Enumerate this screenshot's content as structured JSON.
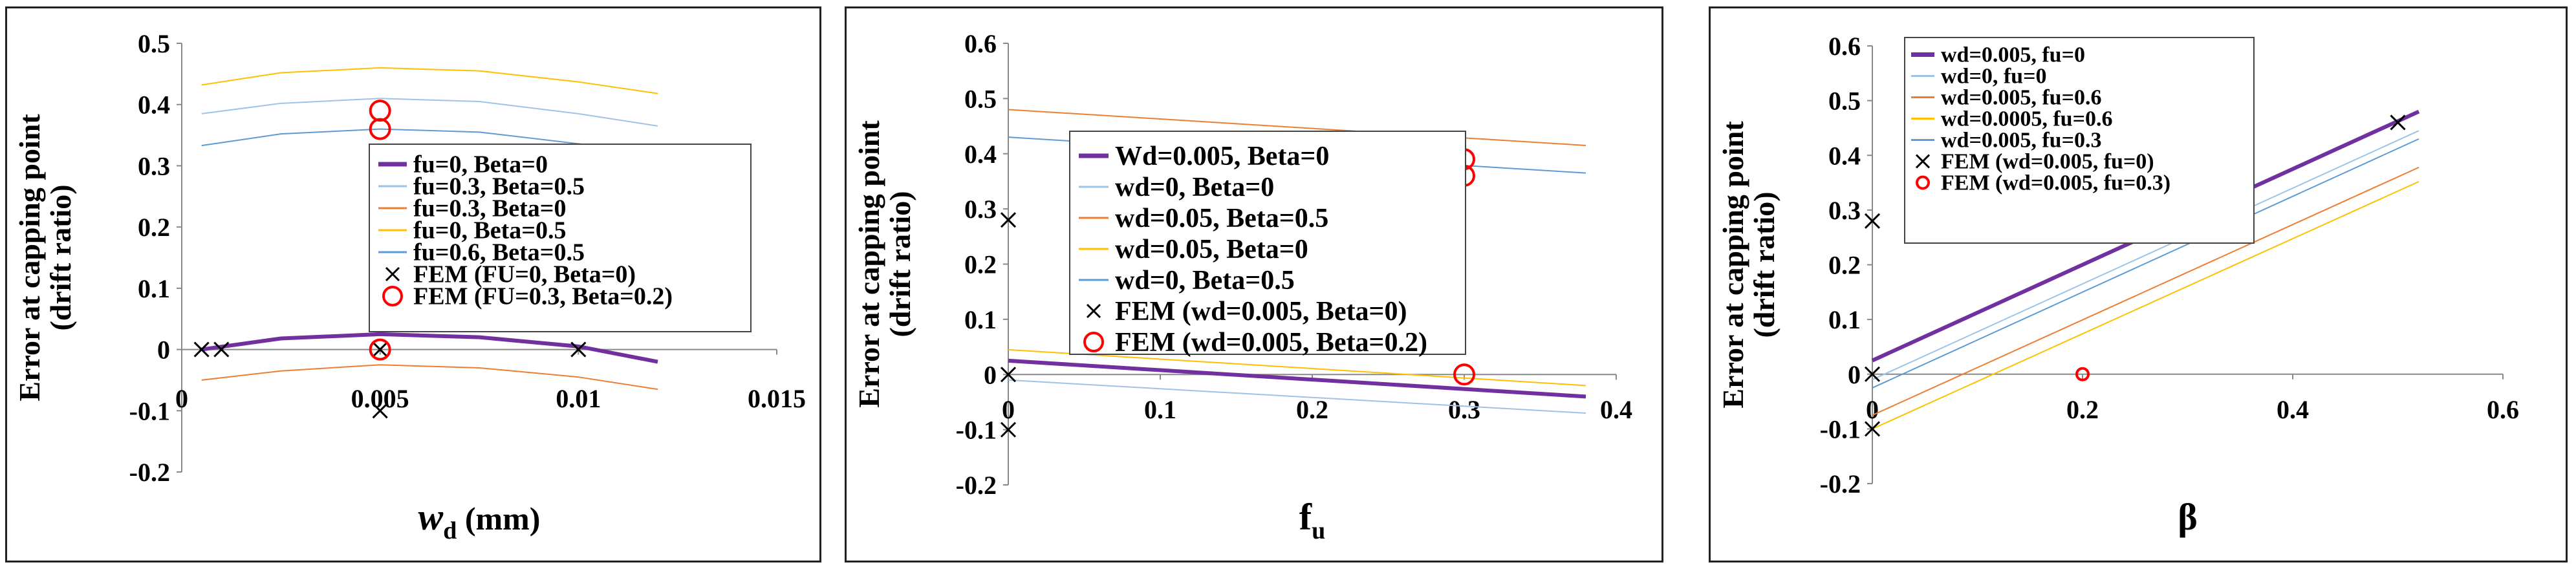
{
  "chart_data": [
    {
      "type": "line",
      "xlabel": "w_d (mm)",
      "xlabel_main": "w",
      "xlabel_sub": "d",
      "xlabel_unit": " (mm)",
      "ylabel": [
        "Error at capping point",
        "(drift ratio)"
      ],
      "xlim": [
        0,
        0.015
      ],
      "ylim": [
        -0.2,
        0.5
      ],
      "xticks": [
        0,
        0.005,
        0.01,
        0.015
      ],
      "yticks": [
        -0.2,
        -0.1,
        0,
        0.1,
        0.2,
        0.3,
        0.4,
        0.5
      ],
      "xtick_labels": [
        "0",
        "0.005",
        "0.01",
        "0.015"
      ],
      "ytick_labels": [
        "-0.2",
        "-0.1",
        "0",
        "0.1",
        "0.2",
        "0.3",
        "0.4",
        "0.5"
      ],
      "grid": false,
      "legend_position": "center-right",
      "series": [
        {
          "name": "fu=0, Beta=0",
          "color": "#7030A0",
          "width": 3,
          "x": [
            0.0005,
            0.0025,
            0.005,
            0.0075,
            0.01,
            0.012
          ],
          "y": [
            0.0,
            0.018,
            0.025,
            0.02,
            0.005,
            -0.02
          ]
        },
        {
          "name": "fu=0.3, Beta=0.5",
          "color": "#9DC3E6",
          "width": 1,
          "x": [
            0.0005,
            0.0025,
            0.005,
            0.0075,
            0.01,
            0.012
          ],
          "y": [
            0.385,
            0.402,
            0.41,
            0.405,
            0.385,
            0.365
          ]
        },
        {
          "name": "fu=0.3, Beta=0",
          "color": "#ED7D31",
          "width": 1,
          "x": [
            0.0005,
            0.0025,
            0.005,
            0.0075,
            0.01,
            0.012
          ],
          "y": [
            -0.05,
            -0.035,
            -0.025,
            -0.03,
            -0.045,
            -0.065
          ]
        },
        {
          "name": "fu=0, Beta=0.5",
          "color": "#FFC000",
          "width": 1,
          "x": [
            0.0005,
            0.0025,
            0.005,
            0.0075,
            0.01,
            0.012
          ],
          "y": [
            0.432,
            0.452,
            0.46,
            0.455,
            0.437,
            0.418
          ]
        },
        {
          "name": "fu=0.6, Beta=0.5",
          "color": "#5B9BD5",
          "width": 1,
          "x": [
            0.0005,
            0.0025,
            0.005,
            0.0075,
            0.01,
            0.012
          ],
          "y": [
            0.333,
            0.352,
            0.36,
            0.355,
            0.336,
            0.318
          ]
        }
      ],
      "scatter": [
        {
          "name": "FEM (FU=0, Beta=0)",
          "marker": "x",
          "color": "#000000",
          "x": [
            0.0005,
            0.001,
            0.005,
            0.005,
            0.01,
            0.005
          ],
          "y": [
            0.0,
            0.0,
            0.0,
            0.28,
            0.0,
            -0.1
          ]
        },
        {
          "name": "FEM (FU=0.3, Beta=0.2)",
          "marker": "o",
          "color": "#FF0000",
          "x": [
            0.005,
            0.005,
            0.005
          ],
          "y": [
            0.39,
            0.36,
            0.0
          ]
        }
      ]
    },
    {
      "type": "line",
      "xlabel": "f_u",
      "xlabel_main": "f",
      "xlabel_sub": "u",
      "xlabel_unit": "",
      "ylabel": [
        "Error at capping point",
        "(drift ratio)"
      ],
      "xlim": [
        0,
        0.4
      ],
      "ylim": [
        -0.2,
        0.6
      ],
      "xticks": [
        0,
        0.1,
        0.2,
        0.3,
        0.4
      ],
      "yticks": [
        -0.2,
        -0.1,
        0,
        0.1,
        0.2,
        0.3,
        0.4,
        0.5,
        0.6
      ],
      "xtick_labels": [
        "0",
        "0.1",
        "0.2",
        "0.3",
        "0.4"
      ],
      "ytick_labels": [
        "-0.2",
        "-0.1",
        "0",
        "0.1",
        "0.2",
        "0.3",
        "0.4",
        "0.5",
        "0.6"
      ],
      "grid": false,
      "legend_position": "center",
      "series": [
        {
          "name": "Wd=0.005, Beta=0",
          "color": "#7030A0",
          "width": 3,
          "x": [
            0,
            0.38
          ],
          "y": [
            0.025,
            -0.04
          ]
        },
        {
          "name": "wd=0, Beta=0",
          "color": "#9DC3E6",
          "width": 1,
          "x": [
            0,
            0.38
          ],
          "y": [
            -0.01,
            -0.07
          ]
        },
        {
          "name": "wd=0.05, Beta=0.5",
          "color": "#ED7D31",
          "width": 1,
          "x": [
            0,
            0.38
          ],
          "y": [
            0.48,
            0.415
          ]
        },
        {
          "name": "wd=0.05, Beta=0",
          "color": "#FFC000",
          "width": 1,
          "x": [
            0,
            0.38
          ],
          "y": [
            0.045,
            -0.02
          ]
        },
        {
          "name": "wd=0, Beta=0.5",
          "color": "#5B9BD5",
          "width": 1,
          "x": [
            0,
            0.38
          ],
          "y": [
            0.43,
            0.365
          ]
        }
      ],
      "scatter": [
        {
          "name": "FEM (wd=0.005, Beta=0)",
          "marker": "x",
          "color": "#000000",
          "x": [
            0,
            0,
            0
          ],
          "y": [
            0.28,
            0.0,
            -0.1
          ]
        },
        {
          "name": "FEM (wd=0.005, Beta=0.2)",
          "marker": "o",
          "color": "#FF0000",
          "x": [
            0.3,
            0.3,
            0.3
          ],
          "y": [
            0.39,
            0.36,
            0.0
          ]
        }
      ]
    },
    {
      "type": "line",
      "xlabel": "β",
      "xlabel_main": "β",
      "xlabel_sub": "",
      "xlabel_unit": "",
      "ylabel": [
        "Error at capping point",
        "(drift ratio)"
      ],
      "xlim": [
        0,
        0.6
      ],
      "ylim": [
        -0.2,
        0.6
      ],
      "xticks": [
        0,
        0.2,
        0.4,
        0.6
      ],
      "yticks": [
        -0.2,
        -0.1,
        0,
        0.1,
        0.2,
        0.3,
        0.4,
        0.5,
        0.6
      ],
      "xtick_labels": [
        "0",
        "0.2",
        "0.4",
        "0.6"
      ],
      "ytick_labels": [
        "-0.2",
        "-0.1",
        "0",
        "0.1",
        "0.2",
        "0.3",
        "0.4",
        "0.5",
        "0.6"
      ],
      "grid": false,
      "legend_position": "top-left",
      "series": [
        {
          "name": "wd=0.005, fu=0",
          "color": "#7030A0",
          "width": 3,
          "x": [
            0,
            0.52
          ],
          "y": [
            0.025,
            0.48
          ]
        },
        {
          "name": "wd=0, fu=0",
          "color": "#9DC3E6",
          "width": 1,
          "x": [
            0,
            0.52
          ],
          "y": [
            -0.01,
            0.445
          ]
        },
        {
          "name": "wd=0.005, fu=0.6",
          "color": "#ED7D31",
          "width": 1,
          "x": [
            0,
            0.52
          ],
          "y": [
            -0.075,
            0.378
          ]
        },
        {
          "name": "wd=0.0005, fu=0.6",
          "color": "#FFC000",
          "width": 1,
          "x": [
            0,
            0.52
          ],
          "y": [
            -0.1,
            0.352
          ]
        },
        {
          "name": "wd=0.005, fu=0.3",
          "color": "#5B9BD5",
          "width": 1,
          "x": [
            0,
            0.52
          ],
          "y": [
            -0.025,
            0.43
          ]
        }
      ],
      "scatter": [
        {
          "name": "FEM (wd=0.005, fu=0)",
          "marker": "x",
          "color": "#000000",
          "x": [
            0,
            0,
            0,
            0.5
          ],
          "y": [
            0.28,
            0.0,
            -0.1,
            0.46
          ]
        },
        {
          "name": "FEM (wd=0.005, fu=0.3)",
          "marker": "o",
          "color": "#FF0000",
          "x": [
            0.2,
            0.2,
            0.2
          ],
          "y": [
            0.39,
            0.37,
            0.0
          ]
        }
      ]
    }
  ]
}
